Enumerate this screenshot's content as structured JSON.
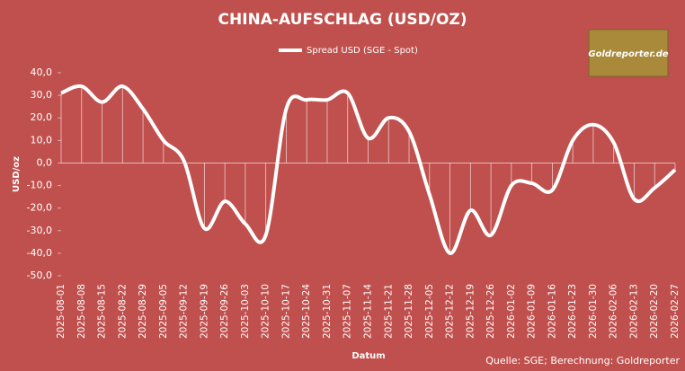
{
  "chart_data": {
    "type": "line",
    "title": "CHINA-AUFSCHLAG (USD/OZ)",
    "logo": "Goldreporter.de",
    "source": "Quelle: SGE; Berechnung: Goldreporter",
    "x_label": "Datum",
    "y_label": "USD/oz",
    "categories": [
      "2025-08-01",
      "2025-08-08",
      "2025-08-15",
      "2025-08-22",
      "2025-08-29",
      "2025-09-05",
      "2025-09-12",
      "2025-09-19",
      "2025-09-26",
      "2025-10-03",
      "2025-10-10",
      "2025-10-17",
      "2025-10-24",
      "2025-10-31",
      "2025-11-07",
      "2025-11-14",
      "2025-11-21",
      "2025-11-28",
      "2025-12-05",
      "2025-12-12",
      "2025-12-19",
      "2025-12-26",
      "2026-01-02",
      "2026-01-09",
      "2026-01-16",
      "2026-01-23",
      "2026-01-30",
      "2026-02-06",
      "2026-02-13",
      "2026-02-20",
      "2026-02-27"
    ],
    "series": [
      {
        "name": "Spread USD (SGE - Spot)",
        "color": "#ffffff",
        "values": [
          31,
          34,
          27,
          34,
          24,
          10,
          1,
          -29,
          -17,
          -27,
          -32,
          24,
          28,
          28,
          31,
          11,
          20,
          14,
          -14,
          -40,
          -21,
          -32,
          -10,
          -9,
          -12,
          10,
          17,
          9,
          -16,
          -11,
          -3
        ]
      }
    ],
    "ylim": [
      -50,
      40
    ],
    "yticks": [
      {
        "value": -50,
        "label": "-50,0"
      },
      {
        "value": -40,
        "label": "-40,0"
      },
      {
        "value": -30,
        "label": "-30,0"
      },
      {
        "value": -20,
        "label": "-20,0"
      },
      {
        "value": -10,
        "label": "-10,0"
      },
      {
        "value": 0,
        "label": "0,0"
      },
      {
        "value": 10,
        "label": "10,0"
      },
      {
        "value": 20,
        "label": "20,0"
      },
      {
        "value": 30,
        "label": "30,0"
      },
      {
        "value": 40,
        "label": "40,0"
      }
    ],
    "drop_lines": true
  }
}
